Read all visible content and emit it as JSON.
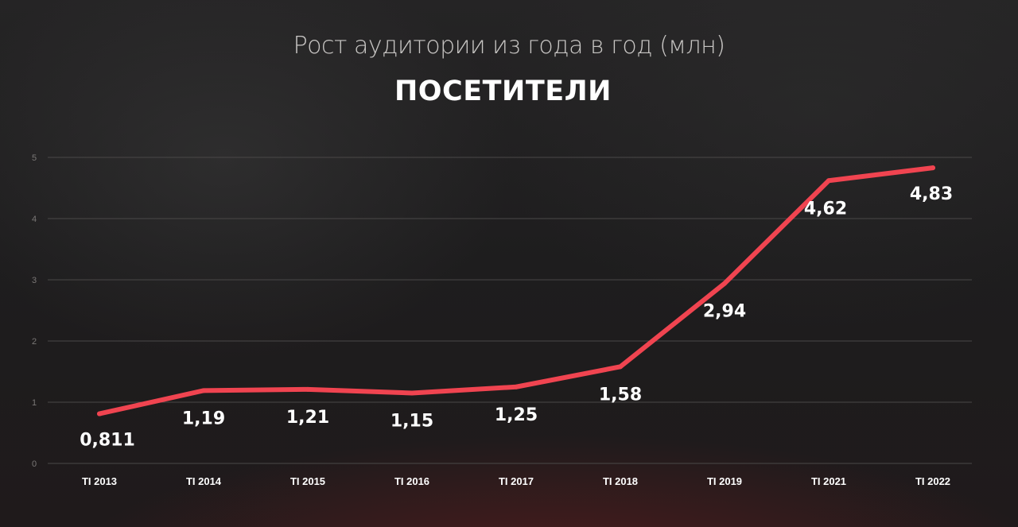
{
  "subtitle": "Рост аудитории из года в год (млн)",
  "title": "ПОСЕТИТЕЛИ",
  "colors": {
    "line": "#f04450",
    "background": "#1e1d1e",
    "gridline": "#4a4848"
  },
  "chart_data": {
    "type": "line",
    "title": "ПОСЕТИТЕЛИ",
    "subtitle": "Рост аудитории из года в год (млн)",
    "categories": [
      "TI 2013",
      "TI 2014",
      "TI 2015",
      "TI 2016",
      "TI 2017",
      "TI 2018",
      "TI 2019",
      "TI 2021",
      "TI 2022"
    ],
    "series": [
      {
        "values": [
          0.811,
          1.19,
          1.21,
          1.15,
          1.25,
          1.58,
          2.94,
          4.62,
          4.83
        ],
        "labels": [
          "0,811",
          "1,19",
          "1,21",
          "1,15",
          "1,25",
          "1,58",
          "2,94",
          "4,62",
          "4,83"
        ]
      }
    ],
    "y_ticks": [
      "0",
      "1",
      "2",
      "3",
      "4",
      "5"
    ],
    "ylim": [
      0,
      5
    ],
    "grid": true,
    "legend": "none"
  }
}
